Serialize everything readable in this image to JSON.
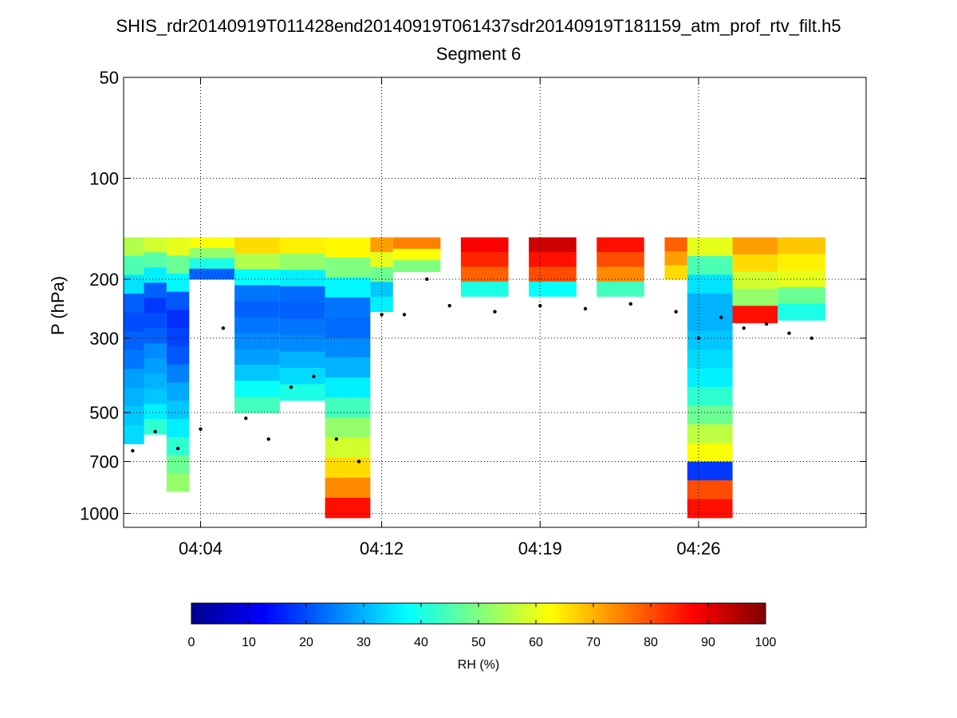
{
  "chart_data": {
    "type": "heatmap",
    "title": "SHIS_rdr20140919T011428end20140919T061437sdr20140919T181159_atm_prof_rtv_filt.h5",
    "subtitle": "Segment 6",
    "ylabel": "P (hPa)",
    "xlabel": "",
    "y_scale": "log",
    "y_reversed": true,
    "ylim": [
      50,
      1100
    ],
    "y_ticks": [
      50,
      100,
      200,
      300,
      500,
      700,
      1000
    ],
    "y_tick_labels": [
      "50",
      "100",
      "200",
      "300",
      "500",
      "700",
      "1000"
    ],
    "x_ticks": [
      "04:04",
      "04:12",
      "04:19",
      "04:26"
    ],
    "grid": "on",
    "colorbar": {
      "label": "RH (%)",
      "range": [
        0,
        100
      ],
      "ticks": [
        "0",
        "10",
        "20",
        "30",
        "40",
        "50",
        "60",
        "70",
        "80",
        "90",
        "100"
      ],
      "colormap": "jet"
    },
    "rh_field": {
      "x": "observation time",
      "y": "pressure (hPa)",
      "value": "RH (%)",
      "columns": [
        {
          "time": "04:01",
          "top": 150,
          "bottom": 620,
          "rh": [
            55,
            45,
            35,
            22,
            20,
            22,
            24,
            28,
            30,
            32,
            34
          ]
        },
        {
          "time": "04:02",
          "top": 150,
          "bottom": 580,
          "rh": [
            58,
            46,
            36,
            22,
            18,
            20,
            22,
            26,
            28,
            30,
            32,
            36,
            42
          ]
        },
        {
          "time": "04:03",
          "top": 150,
          "bottom": 860,
          "rh": [
            60,
            48,
            37,
            21,
            17,
            19,
            21,
            25,
            29,
            32,
            36,
            42,
            48,
            52
          ]
        },
        {
          "time": "04:04",
          "top": 150,
          "bottom": 200,
          "rh": [
            62,
            52,
            40,
            22
          ]
        },
        {
          "time": "04:06",
          "top": 150,
          "bottom": 500,
          "rh": [
            66,
            55,
            38,
            24,
            22,
            24,
            26,
            28,
            32,
            38,
            44
          ]
        },
        {
          "time": "04:08",
          "top": 150,
          "bottom": 460,
          "rh": [
            64,
            52,
            36,
            23,
            22,
            24,
            26,
            30,
            34,
            40
          ]
        },
        {
          "time": "04:10",
          "top": 150,
          "bottom": 1030,
          "rh": [
            63,
            50,
            37,
            24,
            23,
            26,
            30,
            36,
            44,
            52,
            58,
            66,
            74,
            86
          ]
        },
        {
          "time": "04:12",
          "top": 150,
          "bottom": 250,
          "rh": [
            72,
            60,
            48,
            32,
            36
          ]
        },
        {
          "time": "04:13",
          "top": 150,
          "bottom": 190,
          "rh": [
            75,
            62,
            50
          ]
        },
        {
          "time": "04:16",
          "top": 150,
          "bottom": 225,
          "rh": [
            88,
            84,
            78,
            40
          ]
        },
        {
          "time": "04:19",
          "top": 150,
          "bottom": 225,
          "rh": [
            92,
            86,
            80,
            38
          ]
        },
        {
          "time": "04:22",
          "top": 150,
          "bottom": 225,
          "rh": [
            86,
            80,
            74,
            44
          ]
        },
        {
          "time": "04:25",
          "top": 150,
          "bottom": 200,
          "rh": [
            78,
            72,
            66
          ]
        },
        {
          "time": "04:26",
          "top": 150,
          "bottom": 1030,
          "rh": [
            60,
            45,
            35,
            30,
            30,
            32,
            34,
            36,
            42,
            48,
            56,
            62,
            18,
            80,
            86
          ]
        },
        {
          "time": "04:28",
          "top": 150,
          "bottom": 270,
          "rh": [
            72,
            66,
            58,
            52,
            86
          ]
        },
        {
          "time": "04:30",
          "top": 150,
          "bottom": 265,
          "rh": [
            68,
            64,
            60,
            48,
            40
          ]
        }
      ]
    },
    "cloud_top_markers": {
      "marker": "black dot",
      "series": [
        {
          "time": "04:01",
          "p": 650
        },
        {
          "time": "04:02",
          "p": 570
        },
        {
          "time": "04:03",
          "p": 640
        },
        {
          "time": "04:04",
          "p": 560
        },
        {
          "time": "04:05",
          "p": 280
        },
        {
          "time": "04:06",
          "p": 520
        },
        {
          "time": "04:07",
          "p": 600
        },
        {
          "time": "04:08",
          "p": 420
        },
        {
          "time": "04:09",
          "p": 390
        },
        {
          "time": "04:10",
          "p": 600
        },
        {
          "time": "04:11",
          "p": 700
        },
        {
          "time": "04:12",
          "p": 255
        },
        {
          "time": "04:13",
          "p": 255
        },
        {
          "time": "04:14",
          "p": 200
        },
        {
          "time": "04:15",
          "p": 240
        },
        {
          "time": "04:17",
          "p": 250
        },
        {
          "time": "04:19",
          "p": 240
        },
        {
          "time": "04:21",
          "p": 245
        },
        {
          "time": "04:23",
          "p": 237
        },
        {
          "time": "04:25",
          "p": 250
        },
        {
          "time": "04:26",
          "p": 300
        },
        {
          "time": "04:27",
          "p": 260
        },
        {
          "time": "04:28",
          "p": 280
        },
        {
          "time": "04:29",
          "p": 272
        },
        {
          "time": "04:30",
          "p": 290
        },
        {
          "time": "04:31",
          "p": 300
        }
      ]
    }
  }
}
